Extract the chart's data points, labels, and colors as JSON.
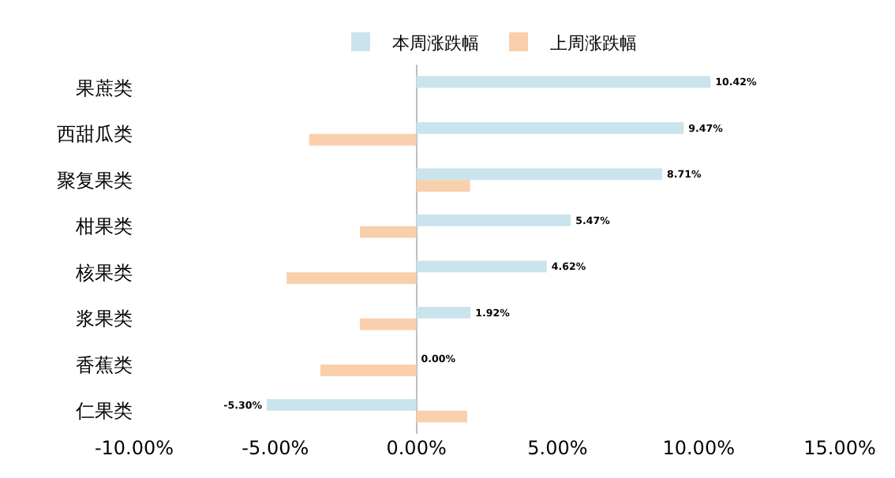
{
  "chart_data": {
    "type": "bar",
    "orientation": "horizontal",
    "categories": [
      "果蔗类",
      "西甜瓜类",
      "聚复果类",
      "柑果类",
      "核果类",
      "浆果类",
      "香蕉类",
      "仁果类"
    ],
    "series": [
      {
        "name": "本周涨跌幅",
        "color": "#c9e4ec",
        "values": [
          10.42,
          9.47,
          8.71,
          5.47,
          4.62,
          1.92,
          0.0,
          -5.3
        ],
        "value_labels": [
          "10.42%",
          "9.47%",
          "8.71%",
          "5.47%",
          "4.62%",
          "1.92%",
          "0.00%",
          "-5.30%"
        ]
      },
      {
        "name": "上周涨跌幅",
        "color": "#f9cfac",
        "values": [
          null,
          -3.8,
          1.9,
          -2.0,
          -4.6,
          -2.0,
          -3.4,
          1.8
        ]
      }
    ],
    "xlim": [
      -10,
      15
    ],
    "xticks": [
      {
        "value": -10,
        "label": "-10.00%"
      },
      {
        "value": -5,
        "label": "-5.00%"
      },
      {
        "value": 0,
        "label": "0.00%"
      },
      {
        "value": 5,
        "label": "5.00%"
      },
      {
        "value": 10,
        "label": "10.00%"
      },
      {
        "value": 15,
        "label": "15.00%"
      }
    ],
    "legend": "top"
  }
}
